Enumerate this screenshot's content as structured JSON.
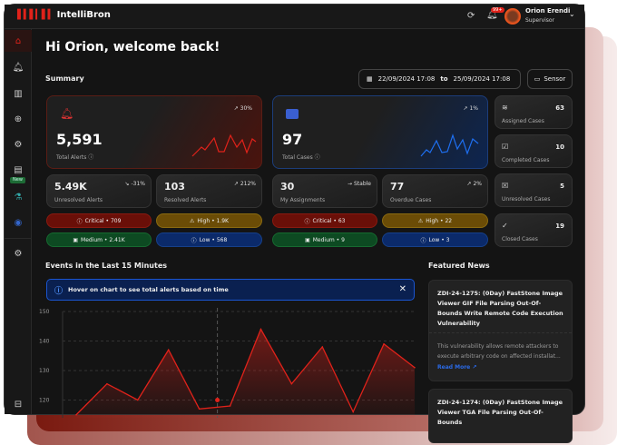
{
  "app": {
    "name": "IntelliBron"
  },
  "header": {
    "notif_badge": "99+",
    "user_name": "Orion Erendi",
    "user_role": "Supervisor"
  },
  "sidebar": {
    "items": [
      {
        "icon": "home-icon"
      },
      {
        "icon": "bell-icon"
      },
      {
        "icon": "briefcase-icon"
      },
      {
        "icon": "crosshair-icon"
      },
      {
        "icon": "gear-icon"
      },
      {
        "icon": "document-icon",
        "badge": "New"
      },
      {
        "icon": "tool-icon"
      },
      {
        "icon": "globe-icon"
      },
      {
        "icon": "settings-icon"
      },
      {
        "icon": "collapse-icon"
      }
    ]
  },
  "greeting": "Hi Orion, welcome back!",
  "summary": {
    "title": "Summary",
    "date_from": "22/09/2024 17:08",
    "date_sep": "to",
    "date_to": "25/09/2024 17:08",
    "sensor_label": "Sensor",
    "total_alerts": {
      "value": "5,591",
      "label": "Total Alerts",
      "trend": "30%"
    },
    "total_cases": {
      "value": "97",
      "label": "Total Cases",
      "trend": "1%"
    },
    "small": [
      {
        "value": "5.49K",
        "label": "Unresolved Alerts",
        "trend": "-31%"
      },
      {
        "value": "103",
        "label": "Resolved Alerts",
        "trend": "212%"
      },
      {
        "value": "30",
        "label": "My Assignments",
        "trend": "Stable"
      },
      {
        "value": "77",
        "label": "Overdue Cases",
        "trend": "2%"
      }
    ],
    "alert_pills": [
      "Critical • 709",
      "High • 1.9K",
      "Medium • 2.41K",
      "Low • 568"
    ],
    "case_pills": [
      "Critical • 63",
      "High • 22",
      "Medium • 9",
      "Low • 3"
    ],
    "right": [
      {
        "label": "Assigned Cases",
        "value": "63"
      },
      {
        "label": "Completed Cases",
        "value": "10"
      },
      {
        "label": "Unresolved Cases",
        "value": "5"
      },
      {
        "label": "Closed Cases",
        "value": "19"
      }
    ]
  },
  "events": {
    "title": "Events in the Last 15 Minutes",
    "banner": "Hover on chart to see total alerts based on time"
  },
  "chart_data": {
    "type": "area",
    "yticks": [
      120,
      130,
      140,
      150
    ],
    "ylim": [
      110,
      150
    ],
    "grid": true,
    "color": "#e0221a",
    "values": [
      115,
      125.5,
      120,
      137,
      117,
      118,
      144,
      125.5,
      138,
      116,
      139,
      131
    ],
    "highlight_value": 120
  },
  "news": {
    "title": "Featured News",
    "items": [
      {
        "title": "ZDI-24-1275: (0Day) FastStone Image Viewer GIF File Parsing Out-Of-Bounds Write Remote Code Execution Vulnerability",
        "body": "This vulnerability allows remote attackers to execute arbitrary code on affected installat...",
        "link": "Read More"
      },
      {
        "title": "ZDI-24-1274: (0Day) FastStone Image Viewer TGA File Parsing Out-Of-Bounds"
      }
    ]
  }
}
